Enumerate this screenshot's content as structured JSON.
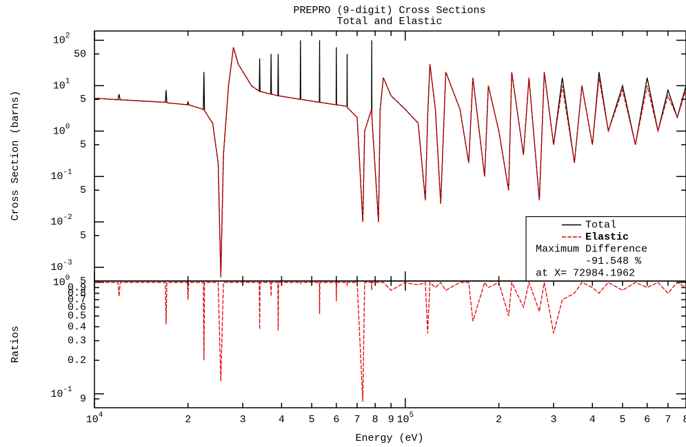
{
  "chart_data": [
    {
      "type": "line",
      "title": "PREPRO (9-digit) Cross Sections",
      "subtitle": "Total and Elastic",
      "ylabel": "Cross Section (barns)",
      "xscale": "log",
      "yscale": "log",
      "xlim": [
        10000,
        800000
      ],
      "ylim": [
        0.0005,
        160
      ],
      "yticks": [
        {
          "value": 100,
          "label": "10^2"
        },
        50,
        {
          "value": 10,
          "label": "10^1"
        },
        5,
        {
          "value": 1,
          "label": "10^0"
        },
        {
          "value": 0.5,
          "label": "5"
        },
        {
          "value": 0.1,
          "label": "10^-1"
        },
        {
          "value": 0.05,
          "label": "5"
        },
        {
          "value": 0.01,
          "label": "10^-2"
        },
        {
          "value": 0.005,
          "label": "5"
        },
        {
          "value": 0.001,
          "label": "10^-3"
        },
        {
          "value": 0.0005,
          "label": "5"
        }
      ],
      "x": [
        10000,
        11900,
        12000,
        12100,
        16900,
        17000,
        17100,
        19900,
        20000,
        20100,
        22400,
        22500,
        22600,
        24000,
        25000,
        25500,
        26000,
        27000,
        28000,
        29000,
        32000,
        33900,
        34000,
        34100,
        36900,
        37000,
        37100,
        38900,
        39000,
        39100,
        45900,
        46000,
        46100,
        52900,
        53000,
        53100,
        59900,
        60000,
        60100,
        64900,
        65000,
        65100,
        70000,
        73000,
        74000,
        77900,
        78000,
        78100,
        82000,
        83000,
        85000,
        90000,
        100000,
        110000,
        116000,
        118000,
        120000,
        125000,
        130000,
        135000,
        150000,
        160000,
        165000,
        180000,
        185000,
        200000,
        215000,
        220000,
        240000,
        250000,
        270000,
        280000,
        300000,
        320000,
        350000,
        370000,
        400000,
        420000,
        450000,
        500000,
        550000,
        600000,
        650000,
        700000,
        750000,
        800000
      ],
      "series": [
        {
          "name": "Total",
          "color": "#000000",
          "dash": "solid",
          "values": [
            5.3,
            4.9,
            6.5,
            4.9,
            4.3,
            8,
            4.2,
            3.8,
            4.5,
            3.8,
            3.0,
            20,
            2.8,
            1.5,
            0.2,
            0.0006,
            0.3,
            10,
            70,
            30,
            10,
            7.5,
            40,
            7.5,
            6.5,
            50,
            6.5,
            6,
            50,
            6,
            5,
            100,
            5,
            4.3,
            100,
            4.3,
            3.8,
            70,
            3.8,
            3.5,
            50,
            3.3,
            2,
            0.01,
            1,
            3,
            100,
            2,
            0.01,
            3,
            15,
            6,
            3,
            1.5,
            0.03,
            2,
            30,
            3,
            0.025,
            20,
            3,
            0.2,
            15,
            0.1,
            10,
            1,
            0.05,
            20,
            0.3,
            15,
            0.03,
            20,
            0.5,
            15,
            0.2,
            10,
            0.5,
            20,
            1,
            10,
            0.5,
            15,
            1,
            8,
            2,
            10
          ]
        },
        {
          "name": "Elastic",
          "color": "#e00000",
          "dash": "dashed",
          "values": [
            5.3,
            4.9,
            4.9,
            4.9,
            4.3,
            4.3,
            4.2,
            3.8,
            3.8,
            3.8,
            3.0,
            3.0,
            2.8,
            1.5,
            0.2,
            0.0006,
            0.3,
            10,
            70,
            30,
            10,
            7.5,
            7.5,
            7.5,
            6.5,
            6.5,
            6.5,
            6,
            6,
            6,
            5,
            5,
            5,
            4.3,
            4.3,
            4.3,
            3.8,
            3.8,
            3.8,
            3.5,
            3.5,
            3.3,
            2,
            0.01,
            1,
            3,
            3,
            2,
            0.01,
            3,
            15,
            6,
            3,
            1.5,
            0.03,
            2,
            30,
            3,
            0.025,
            20,
            3,
            0.2,
            15,
            0.1,
            10,
            1,
            0.05,
            20,
            0.3,
            15,
            0.03,
            20,
            0.5,
            10,
            0.2,
            10,
            0.5,
            15,
            1,
            8,
            0.5,
            10,
            1,
            6,
            2,
            8
          ]
        }
      ],
      "legend": "lower right",
      "annotations": [
        "Maximum Difference",
        "-91.548 %",
        "at X=  72984.1962"
      ]
    },
    {
      "type": "line",
      "ylabel": "Ratios",
      "xlabel": "Energy (eV)",
      "xscale": "log",
      "yscale": "log",
      "xlim": [
        10000,
        800000
      ],
      "ylim": [
        0.075,
        1.03
      ],
      "yticks": [
        {
          "value": 1,
          "label": "10^0"
        },
        0.9,
        0.8,
        0.7,
        0.6,
        0.5,
        0.4,
        0.3,
        0.2,
        {
          "value": 0.1,
          "label": "10^-1"
        },
        {
          "value": 0.09,
          "label": "9"
        }
      ],
      "xticks": [
        {
          "value": 10000,
          "label": "10^4"
        },
        {
          "value": 20000,
          "label": "2"
        },
        {
          "value": 30000,
          "label": "3"
        },
        {
          "value": 40000,
          "label": "4"
        },
        {
          "value": 50000,
          "label": "5"
        },
        {
          "value": 60000,
          "label": "6"
        },
        {
          "value": 70000,
          "label": "7"
        },
        {
          "value": 80000,
          "label": "8"
        },
        {
          "value": 90000,
          "label": "9"
        },
        {
          "value": 100000,
          "label": "10^5"
        },
        {
          "value": 200000,
          "label": "2"
        },
        {
          "value": 300000,
          "label": "3"
        },
        {
          "value": 400000,
          "label": "4"
        },
        {
          "value": 500000,
          "label": "5"
        },
        {
          "value": 600000,
          "label": "6"
        },
        {
          "value": 700000,
          "label": "7"
        },
        {
          "value": 800000,
          "label": "8"
        }
      ],
      "x": [
        10000,
        11900,
        12000,
        12100,
        16900,
        17000,
        17100,
        19900,
        20000,
        20100,
        22400,
        22500,
        22600,
        24000,
        25000,
        25500,
        26000,
        27000,
        28000,
        29000,
        32000,
        33900,
        34000,
        34100,
        36900,
        37000,
        37100,
        38900,
        39000,
        39100,
        45900,
        46000,
        46100,
        52900,
        53000,
        53100,
        59900,
        60000,
        60100,
        64900,
        65000,
        65100,
        70000,
        73000,
        74000,
        77900,
        78000,
        78100,
        82000,
        83000,
        85000,
        90000,
        100000,
        110000,
        116000,
        118000,
        120000,
        125000,
        130000,
        135000,
        150000,
        160000,
        165000,
        180000,
        185000,
        200000,
        215000,
        220000,
        240000,
        250000,
        270000,
        280000,
        300000,
        320000,
        350000,
        370000,
        400000,
        420000,
        450000,
        500000,
        550000,
        600000,
        650000,
        700000,
        750000,
        800000
      ],
      "series": [
        {
          "color": "#e00000",
          "dash": "dashed",
          "values": [
            1,
            1,
            0.75,
            1,
            1,
            0.42,
            1,
            1,
            0.7,
            1,
            1,
            0.2,
            1,
            1,
            1,
            0.13,
            1,
            1,
            1,
            1,
            1,
            1,
            0.38,
            1,
            1,
            0.75,
            1,
            1,
            0.37,
            1,
            1,
            0.97,
            1,
            1,
            0.52,
            1,
            1,
            0.68,
            1,
            1,
            0.93,
            1,
            1,
            0.085,
            1,
            1,
            0.85,
            1,
            1,
            1,
            1,
            0.85,
            1,
            0.95,
            1,
            0.35,
            1,
            0.9,
            1,
            0.85,
            1,
            1,
            0.45,
            1,
            0.9,
            1,
            0.5,
            1,
            0.6,
            1,
            0.55,
            1,
            0.35,
            0.7,
            0.8,
            1,
            0.9,
            0.8,
            1,
            0.85,
            1,
            0.9,
            1,
            0.8,
            1,
            0.9
          ]
        }
      ]
    }
  ]
}
